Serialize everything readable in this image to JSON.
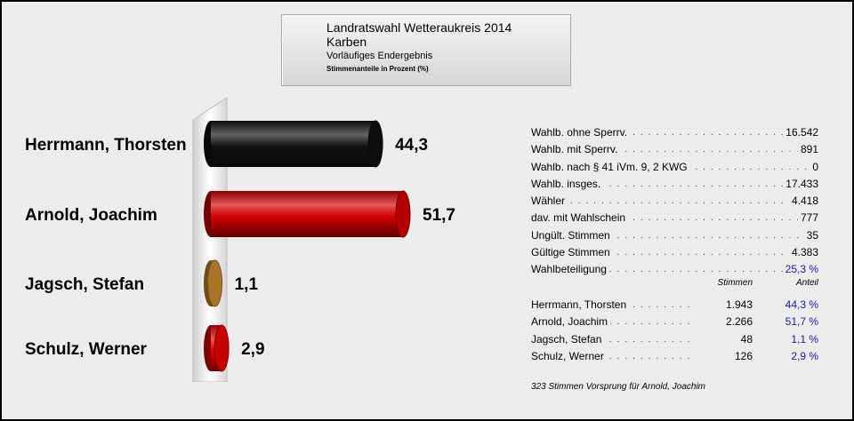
{
  "title_box": {
    "line1": "Landratswahl Wetteraukreis 2014",
    "line2": "Karben",
    "line3": "Vorläufiges Endergebnis",
    "line4": "Stimmenanteile in Prozent (%)"
  },
  "chart_data": {
    "type": "bar",
    "orientation": "horizontal",
    "categories": [
      "Herrmann, Thorsten",
      "Arnold, Joachim",
      "Jagsch, Stefan",
      "Schulz, Werner"
    ],
    "values": [
      44.3,
      51.7,
      1.1,
      2.9
    ],
    "value_labels": [
      "44,3",
      "51,7",
      "1,1",
      "2,9"
    ],
    "colors": [
      "#111111",
      "#d40000",
      "#c98a2e",
      "#e60000"
    ],
    "xlim": [
      0,
      51.7
    ]
  },
  "stats": [
    {
      "label": "Wahlb. ohne Sperrv.",
      "value": "16.542",
      "highlight": false
    },
    {
      "label": "Wahlb. mit Sperrv.",
      "value": "891",
      "highlight": false
    },
    {
      "label": "Wahlb. nach § 41 iVm. 9, 2 KWG",
      "value": "0",
      "highlight": false
    },
    {
      "label": "Wahlb. insges.",
      "value": "17.433",
      "highlight": false
    },
    {
      "label": "Wähler",
      "value": "4.418",
      "highlight": false
    },
    {
      "label": "dav. mit Wahlschein",
      "value": "777",
      "highlight": false
    },
    {
      "label": "Ungült. Stimmen",
      "value": "35",
      "highlight": false
    },
    {
      "label": "Gültige Stimmen",
      "value": "4.383",
      "highlight": false
    },
    {
      "label": "Wahlbeteiligung",
      "value": "25,3 %",
      "highlight": true
    }
  ],
  "candidate_table": {
    "header_votes": "Stimmen",
    "header_share": "Anteil",
    "rows": [
      {
        "name": "Herrmann, Thorsten",
        "votes": "1.943",
        "share": "44,3 %"
      },
      {
        "name": "Arnold, Joachim",
        "votes": "2.266",
        "share": "51,7 %"
      },
      {
        "name": "Jagsch, Stefan",
        "votes": "48",
        "share": "1,1 %"
      },
      {
        "name": "Schulz, Werner",
        "votes": "126",
        "share": "2,9 %"
      }
    ]
  },
  "footer_note": "323 Stimmen Vorsprung für Arnold, Joachim"
}
